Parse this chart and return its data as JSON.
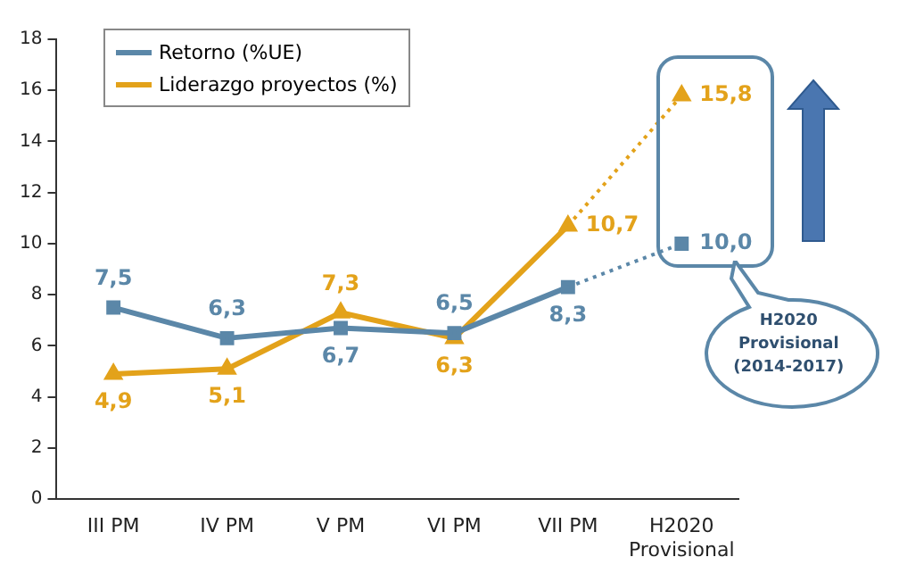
{
  "chart_data": {
    "type": "line",
    "categories": [
      "III PM",
      "IV PM",
      "V PM",
      "VI PM",
      "VII PM",
      "H2020\nProvisional"
    ],
    "series": [
      {
        "name": "Retorno (%UE)",
        "color": "#5b87a8",
        "marker": "square",
        "values": [
          7.5,
          6.3,
          6.7,
          6.5,
          8.3,
          10.0
        ],
        "value_labels": [
          "7,5",
          "6,3",
          "6,7",
          "6,5",
          "8,3",
          "10,0"
        ]
      },
      {
        "name": "Liderazgo proyectos (%)",
        "color": "#e3a21a",
        "marker": "triangle",
        "values": [
          4.9,
          5.1,
          7.3,
          6.3,
          10.7,
          15.8
        ],
        "value_labels": [
          "4,9",
          "5,1",
          "7,3",
          "6,3",
          "10,7",
          "15,8"
        ]
      }
    ],
    "ylim": [
      0,
      18
    ],
    "yticks": [
      0,
      2,
      4,
      6,
      8,
      10,
      12,
      14,
      16,
      18
    ],
    "grid": false,
    "legend": "top left",
    "annotations": [
      "H2020\nProvisional\n(2014-2017)"
    ]
  }
}
